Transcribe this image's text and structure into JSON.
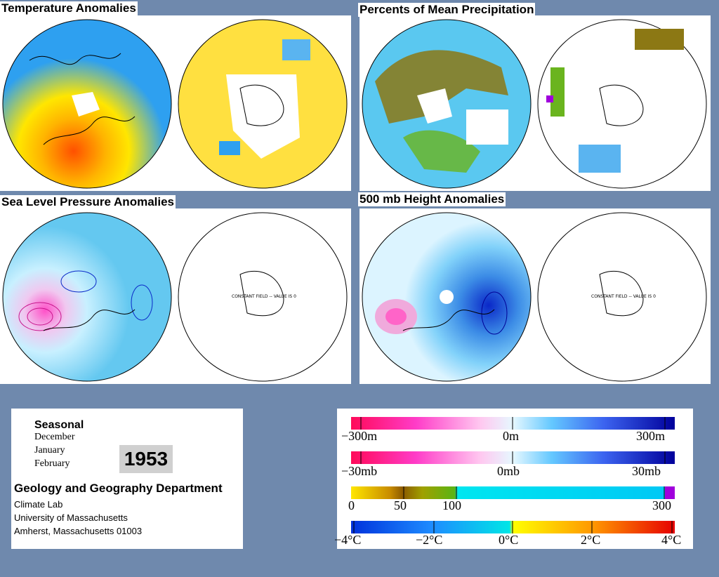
{
  "panels": {
    "temperature": {
      "title": "Temperature Anomalies"
    },
    "precipitation": {
      "title": "Percents of Mean Precipitation"
    },
    "slp": {
      "title": "Sea Level Pressure Anomalies",
      "constant_note": "CONSTANT FIELD -- VALUE IS 0"
    },
    "height": {
      "title": "500 mb Height Anomalies",
      "constant_note": "CONSTANT FIELD -- VALUE IS 0"
    }
  },
  "info": {
    "season_label": "Seasonal",
    "months": [
      "December",
      "January",
      "February"
    ],
    "year": "1953",
    "department": "Geology and Geography Department",
    "address": [
      "Climate Lab",
      "University of Massachusetts",
      "Amherst, Massachusetts 01003"
    ]
  },
  "legend": {
    "height_scale": {
      "labels": [
        "−300m",
        "0m",
        "300m"
      ]
    },
    "pressure_scale": {
      "labels": [
        "−30mb",
        "0mb",
        "30mb"
      ]
    },
    "precip_scale": {
      "labels": [
        "0",
        "50",
        "100",
        "300"
      ]
    },
    "temp_scale": {
      "labels": [
        "−4°C",
        "−2°C",
        "0°C",
        "2°C",
        "4°C"
      ]
    }
  },
  "colors": {
    "background": "#6f89ad",
    "panel": "#ffffff",
    "pink": "#ff1493",
    "light_cyan": "#bff0ff",
    "blue": "#1e46d2",
    "navy": "#000096",
    "yellow": "#ffe600",
    "orange": "#ff6400",
    "red": "#dc0000",
    "olive": "#8c7814",
    "green": "#6ab41e",
    "purple": "#8c1edc"
  }
}
